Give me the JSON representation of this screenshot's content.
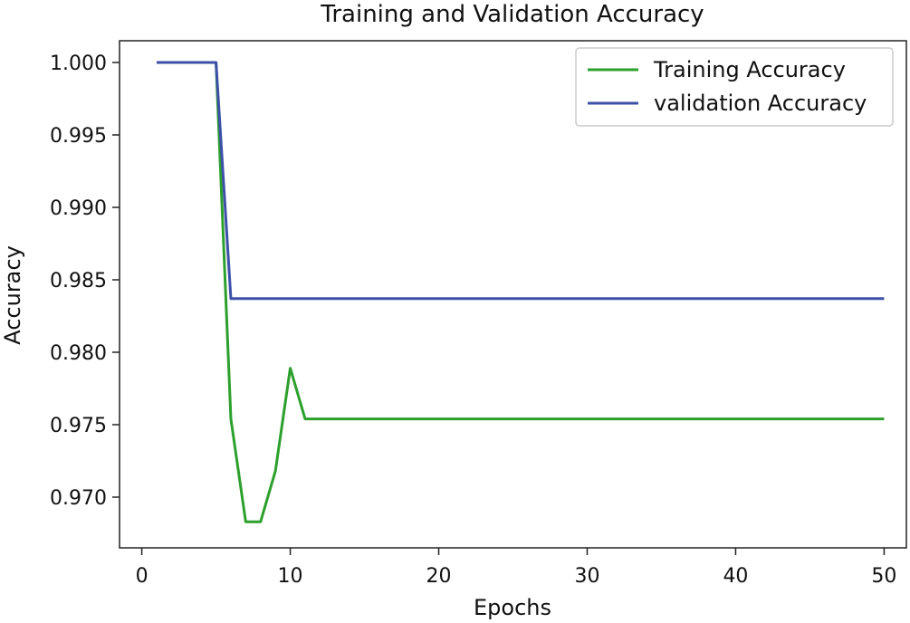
{
  "chart_data": {
    "type": "line",
    "title": "Training and Validation Accuracy",
    "xlabel": "Epochs",
    "ylabel": "Accuracy",
    "xlim": [
      -1.5,
      51.5
    ],
    "ylim": [
      0.9665,
      1.0015
    ],
    "x_ticks": [
      0,
      10,
      20,
      30,
      40,
      50
    ],
    "y_ticks": [
      0.97,
      0.975,
      0.98,
      0.985,
      0.99,
      0.995,
      1.0
    ],
    "y_tick_labels": [
      "0.970",
      "0.975",
      "0.980",
      "0.985",
      "0.990",
      "0.995",
      "1.000"
    ],
    "legend_position": "top-right",
    "series": [
      {
        "name": "Training Accuracy",
        "color": "#2ca02c",
        "x": [
          1,
          2,
          3,
          4,
          5,
          6,
          7,
          8,
          9,
          10,
          11,
          12,
          13,
          14,
          15,
          16,
          17,
          18,
          19,
          20,
          21,
          22,
          23,
          24,
          25,
          26,
          27,
          28,
          29,
          30,
          31,
          32,
          33,
          34,
          35,
          36,
          37,
          38,
          39,
          40,
          41,
          42,
          43,
          44,
          45,
          46,
          47,
          48,
          49,
          50
        ],
        "y": [
          1.0,
          1.0,
          1.0,
          1.0,
          1.0,
          0.9754,
          0.9683,
          0.9683,
          0.9718,
          0.9789,
          0.9754,
          0.9754,
          0.9754,
          0.9754,
          0.9754,
          0.9754,
          0.9754,
          0.9754,
          0.9754,
          0.9754,
          0.9754,
          0.9754,
          0.9754,
          0.9754,
          0.9754,
          0.9754,
          0.9754,
          0.9754,
          0.9754,
          0.9754,
          0.9754,
          0.9754,
          0.9754,
          0.9754,
          0.9754,
          0.9754,
          0.9754,
          0.9754,
          0.9754,
          0.9754,
          0.9754,
          0.9754,
          0.9754,
          0.9754,
          0.9754,
          0.9754,
          0.9754,
          0.9754,
          0.9754,
          0.9754
        ]
      },
      {
        "name": "validation Accuracy",
        "color": "#3d50a8",
        "x": [
          1,
          2,
          3,
          4,
          5,
          6,
          7,
          8,
          9,
          10,
          11,
          12,
          13,
          14,
          15,
          16,
          17,
          18,
          19,
          20,
          21,
          22,
          23,
          24,
          25,
          26,
          27,
          28,
          29,
          30,
          31,
          32,
          33,
          34,
          35,
          36,
          37,
          38,
          39,
          40,
          41,
          42,
          43,
          44,
          45,
          46,
          47,
          48,
          49,
          50
        ],
        "y": [
          1.0,
          1.0,
          1.0,
          1.0,
          1.0,
          0.9837,
          0.9837,
          0.9837,
          0.9837,
          0.9837,
          0.9837,
          0.9837,
          0.9837,
          0.9837,
          0.9837,
          0.9837,
          0.9837,
          0.9837,
          0.9837,
          0.9837,
          0.9837,
          0.9837,
          0.9837,
          0.9837,
          0.9837,
          0.9837,
          0.9837,
          0.9837,
          0.9837,
          0.9837,
          0.9837,
          0.9837,
          0.9837,
          0.9837,
          0.9837,
          0.9837,
          0.9837,
          0.9837,
          0.9837,
          0.9837,
          0.9837,
          0.9837,
          0.9837,
          0.9837,
          0.9837,
          0.9837,
          0.9837,
          0.9837,
          0.9837,
          0.9837
        ]
      }
    ]
  }
}
